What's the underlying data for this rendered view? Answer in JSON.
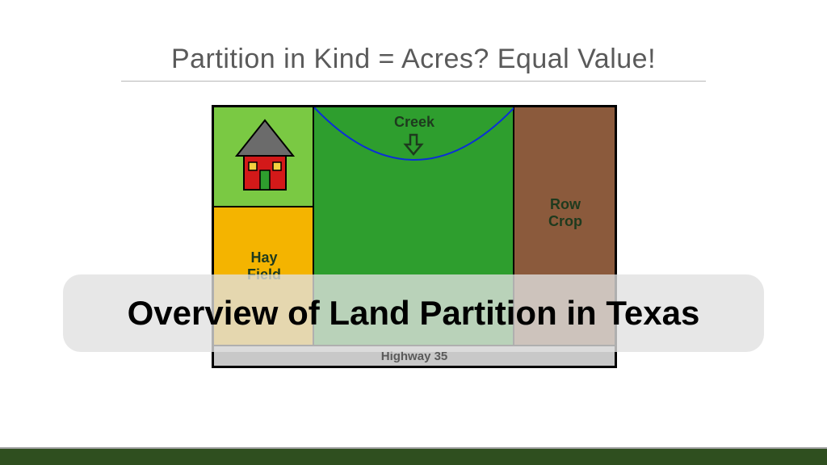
{
  "heading": "Partition in Kind  = Acres? Equal Value!",
  "heading_color": "#5a5a5a",
  "heading_fontsize": 34,
  "rule_color": "#b8b8b8",
  "diagram": {
    "border_color": "#000000",
    "parcels": {
      "house": {
        "fill": "#7ac943"
      },
      "hay": {
        "fill": "#f4b400",
        "label": "Hay\nField"
      },
      "creek": {
        "fill": "#2e9e2e",
        "label": "Creek"
      },
      "row": {
        "fill": "#8b5a3c",
        "label": "Row\nCrop"
      }
    },
    "highway": {
      "fill": "#c8c8c8",
      "label": "Highway 35"
    },
    "creek_curve": {
      "stroke": "#0b2fd6",
      "stroke_width": 2
    },
    "arrow_color": "#1e3a1e",
    "house_icon": {
      "wall": "#d31919",
      "roof": "#6b6b6b",
      "door": "#2e9e2e",
      "window": "#f4d03f",
      "outline": "#000000"
    },
    "label_color": "#1e3a1e",
    "label_fontsize": 18
  },
  "overlay": {
    "text": "Overview of Land Partition in Texas",
    "bg": "rgba(224,224,224,0.78)",
    "color": "#000000",
    "fontsize": 42,
    "radius": 22
  },
  "footer_bar_color": "#2f4f1f",
  "footer_divider_color": "#9e9e9e"
}
